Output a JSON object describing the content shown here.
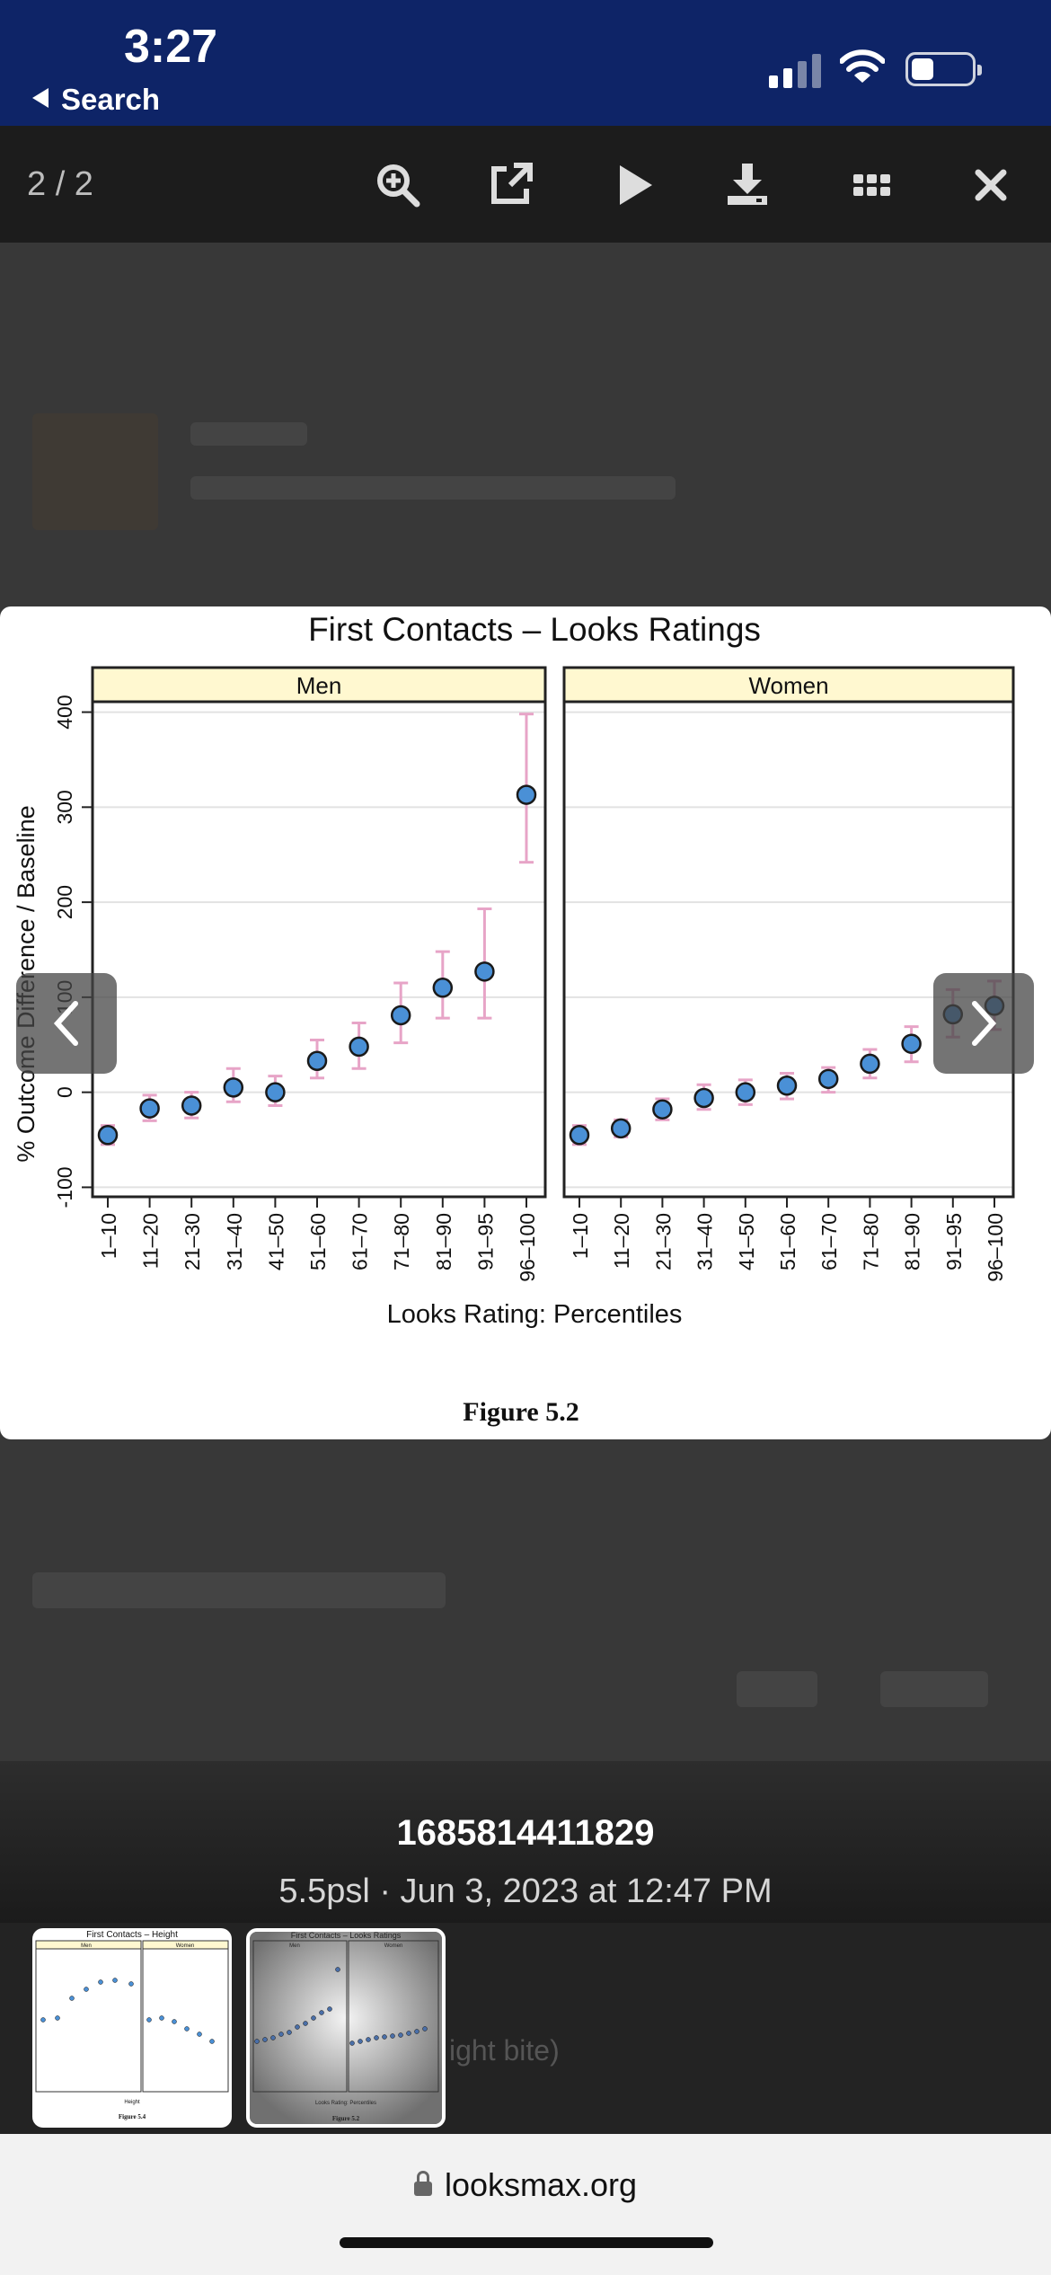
{
  "status_bar": {
    "time": "3:27",
    "back_label": "Search",
    "background": "#0e2467"
  },
  "toolbar": {
    "counter": "2 / 2",
    "icons": [
      "zoom-in-icon",
      "open-external-icon",
      "play-icon",
      "download-icon",
      "grid-icon",
      "close-icon"
    ]
  },
  "image": {
    "caption": "Figure 5.2"
  },
  "caption": {
    "title": "1685814411829",
    "subtitle": "5.5psl · Jun 3, 2023 at 12:47 PM"
  },
  "thumbnails": [
    {
      "title": "First Contacts – Height",
      "panels": [
        "Men",
        "Women"
      ],
      "xlabel": "Height",
      "figure": "Figure 5.4"
    },
    {
      "title": "First Contacts – Looks Ratings",
      "panels": [
        "Men",
        "Women"
      ],
      "xlabel": "Looks Rating: Percentiles",
      "figure": "Figure 5.2"
    }
  ],
  "thumb_peek_text": "ight bite)",
  "url_bar": {
    "url": "looksmax.org"
  },
  "chart_data": {
    "type": "scatter",
    "title": "First Contacts – Looks Ratings",
    "xlabel": "Looks Rating: Percentiles",
    "ylabel": "% Outcome Difference / Baseline",
    "categories": [
      "1–10",
      "11–20",
      "21–30",
      "31–40",
      "41–50",
      "51–60",
      "61–70",
      "71–80",
      "81–90",
      "91–95",
      "96–100"
    ],
    "yticks": [
      -100,
      0,
      100,
      200,
      300,
      400
    ],
    "ylim": [
      -110,
      410
    ],
    "panels": [
      {
        "name": "Men",
        "values": [
          -45,
          -17,
          -14,
          5,
          0,
          33,
          48,
          81,
          110,
          127,
          313
        ],
        "lower": [
          -55,
          -30,
          -27,
          -10,
          -14,
          15,
          25,
          52,
          78,
          78,
          242
        ],
        "upper": [
          -35,
          -3,
          0,
          25,
          17,
          55,
          73,
          115,
          148,
          193,
          398
        ]
      },
      {
        "name": "Women",
        "values": [
          -45,
          -38,
          -18,
          -6,
          0,
          7,
          14,
          30,
          51,
          82,
          91
        ],
        "lower": [
          -55,
          -47,
          -29,
          -18,
          -13,
          -7,
          0,
          15,
          32,
          58,
          66
        ],
        "upper": [
          -35,
          -29,
          -7,
          8,
          13,
          20,
          26,
          45,
          69,
          108,
          117
        ]
      }
    ],
    "strip_color": "#fff8d0",
    "marker_color": "#4a90d6",
    "errorbar_color": "#e7a4c7",
    "grid": true
  }
}
